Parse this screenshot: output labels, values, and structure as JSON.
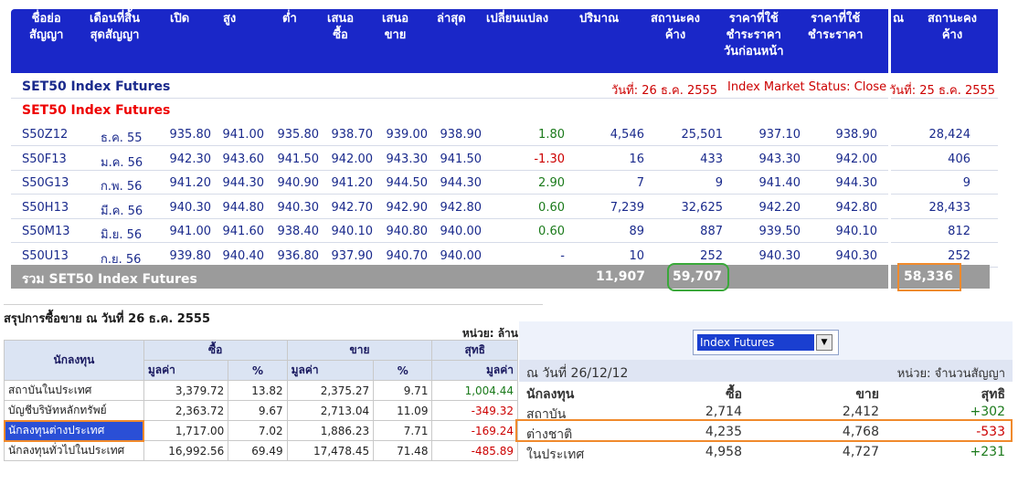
{
  "columns": [
    "ชื่อย่อ\nสัญญา",
    "เดือนที่สิ้น\nสุดสัญญา",
    "เปิด",
    "สูง",
    "ต่ำ",
    "เสนอ\nซื้อ",
    "เสนอ\nขาย",
    "ล่าสุด",
    "เปลี่ยนแปลง",
    "ปริมาณ",
    "สถานะคง\nค้าง",
    "ราคาที่ใช้\nชำระราคา\nวันก่อนหน้า",
    "ราคาที่ใช้\nชำระราคา"
  ],
  "right_columns": [
    "ณ",
    "สถานะคง\nค้าง"
  ],
  "section_title": "SET50 Index Futures",
  "date_label": "วันที่: 26 ธ.ค. 2555",
  "status_label": "Index Market Status: Close",
  "right_date_label": "วันที่: 25 ธ.ค. 2555",
  "subsection_title": "SET50 Index Futures",
  "rows": [
    {
      "symbol": "S50Z12",
      "month": "ธ.ค. 55",
      "open": "935.80",
      "high": "941.00",
      "low": "935.80",
      "bid": "938.70",
      "offer": "939.00",
      "last": "938.90",
      "change": "1.80",
      "volume": "4,546",
      "oi": "25,501",
      "prev_settle": "937.10",
      "settle": "938.90",
      "right_oi": "28,424"
    },
    {
      "symbol": "S50F13",
      "month": "ม.ค. 56",
      "open": "942.30",
      "high": "943.60",
      "low": "941.50",
      "bid": "942.00",
      "offer": "943.30",
      "last": "941.50",
      "change": "-1.30",
      "volume": "16",
      "oi": "433",
      "prev_settle": "943.30",
      "settle": "942.00",
      "right_oi": "406"
    },
    {
      "symbol": "S50G13",
      "month": "ก.พ. 56",
      "open": "941.20",
      "high": "944.30",
      "low": "940.90",
      "bid": "941.20",
      "offer": "944.50",
      "last": "944.30",
      "change": "2.90",
      "volume": "7",
      "oi": "9",
      "prev_settle": "941.40",
      "settle": "944.30",
      "right_oi": "9"
    },
    {
      "symbol": "S50H13",
      "month": "มี.ค. 56",
      "open": "940.30",
      "high": "944.80",
      "low": "940.30",
      "bid": "942.70",
      "offer": "942.90",
      "last": "942.80",
      "change": "0.60",
      "volume": "7,239",
      "oi": "32,625",
      "prev_settle": "942.20",
      "settle": "942.80",
      "right_oi": "28,433"
    },
    {
      "symbol": "S50M13",
      "month": "มิ.ย. 56",
      "open": "941.00",
      "high": "941.60",
      "low": "938.40",
      "bid": "940.10",
      "offer": "940.80",
      "last": "940.00",
      "change": "0.60",
      "volume": "89",
      "oi": "887",
      "prev_settle": "939.50",
      "settle": "940.10",
      "right_oi": "812"
    },
    {
      "symbol": "S50U13",
      "month": "ก.ย. 56",
      "open": "939.80",
      "high": "940.40",
      "low": "936.80",
      "bid": "937.90",
      "offer": "940.70",
      "last": "940.00",
      "change": "-",
      "volume": "10",
      "oi": "252",
      "prev_settle": "940.30",
      "settle": "940.30",
      "right_oi": "252"
    }
  ],
  "total": {
    "label": "รวม SET50 Index Futures",
    "volume": "11,907",
    "oi": "59,707",
    "right_oi": "58,336"
  },
  "summary": {
    "title": "สรุปการซื้อขาย ณ วันที่ 26 ธ.ค. 2555",
    "unit": "หน่วย: ล้าน",
    "col_investor": "นักลงทุน",
    "col_buy": "ซื้อ",
    "col_sell": "ขาย",
    "col_net": "สุทธิ",
    "col_value": "มูลค่า",
    "col_pct": "%",
    "rows": [
      {
        "name": "สถาบันในประเทศ",
        "buy": "3,379.72",
        "buy_pct": "13.82",
        "sell": "2,375.27",
        "sell_pct": "9.71",
        "net": "1,004.44"
      },
      {
        "name": "บัญชีบริษัทหลักทรัพย์",
        "buy": "2,363.72",
        "buy_pct": "9.67",
        "sell": "2,713.04",
        "sell_pct": "11.09",
        "net": "-349.32"
      },
      {
        "name": "นักลงทุนต่างประเทศ",
        "buy": "1,717.00",
        "buy_pct": "7.02",
        "sell": "1,886.23",
        "sell_pct": "7.71",
        "net": "-169.24"
      },
      {
        "name": "นักลงทุนทั่วไปในประเทศ",
        "buy": "16,992.56",
        "buy_pct": "69.49",
        "sell": "17,478.45",
        "sell_pct": "71.48",
        "net": "-485.89"
      }
    ]
  },
  "foreign_panel": {
    "dropdown_value": "Index Futures",
    "date": "ณ วันที่ 26/12/12",
    "unit": "หน่วย: จำนวนสัญญา",
    "col_investor": "นักลงทุน",
    "col_buy": "ซื้อ",
    "col_sell": "ขาย",
    "col_net": "สุทธิ",
    "rows": [
      {
        "name": "สถาบัน",
        "buy": "2,714",
        "sell": "2,412",
        "net": "+302"
      },
      {
        "name": "ต่างชาติ",
        "buy": "4,235",
        "sell": "4,768",
        "net": "-533"
      },
      {
        "name": "ในประเทศ",
        "buy": "4,958",
        "sell": "4,727",
        "net": "+231"
      }
    ]
  },
  "colors": {
    "header_bg": "#1a27c8",
    "positive": "#1b7a1b",
    "negative": "#cc0000",
    "highlight_green": "#3aa83a",
    "highlight_orange": "#f08a2c"
  }
}
